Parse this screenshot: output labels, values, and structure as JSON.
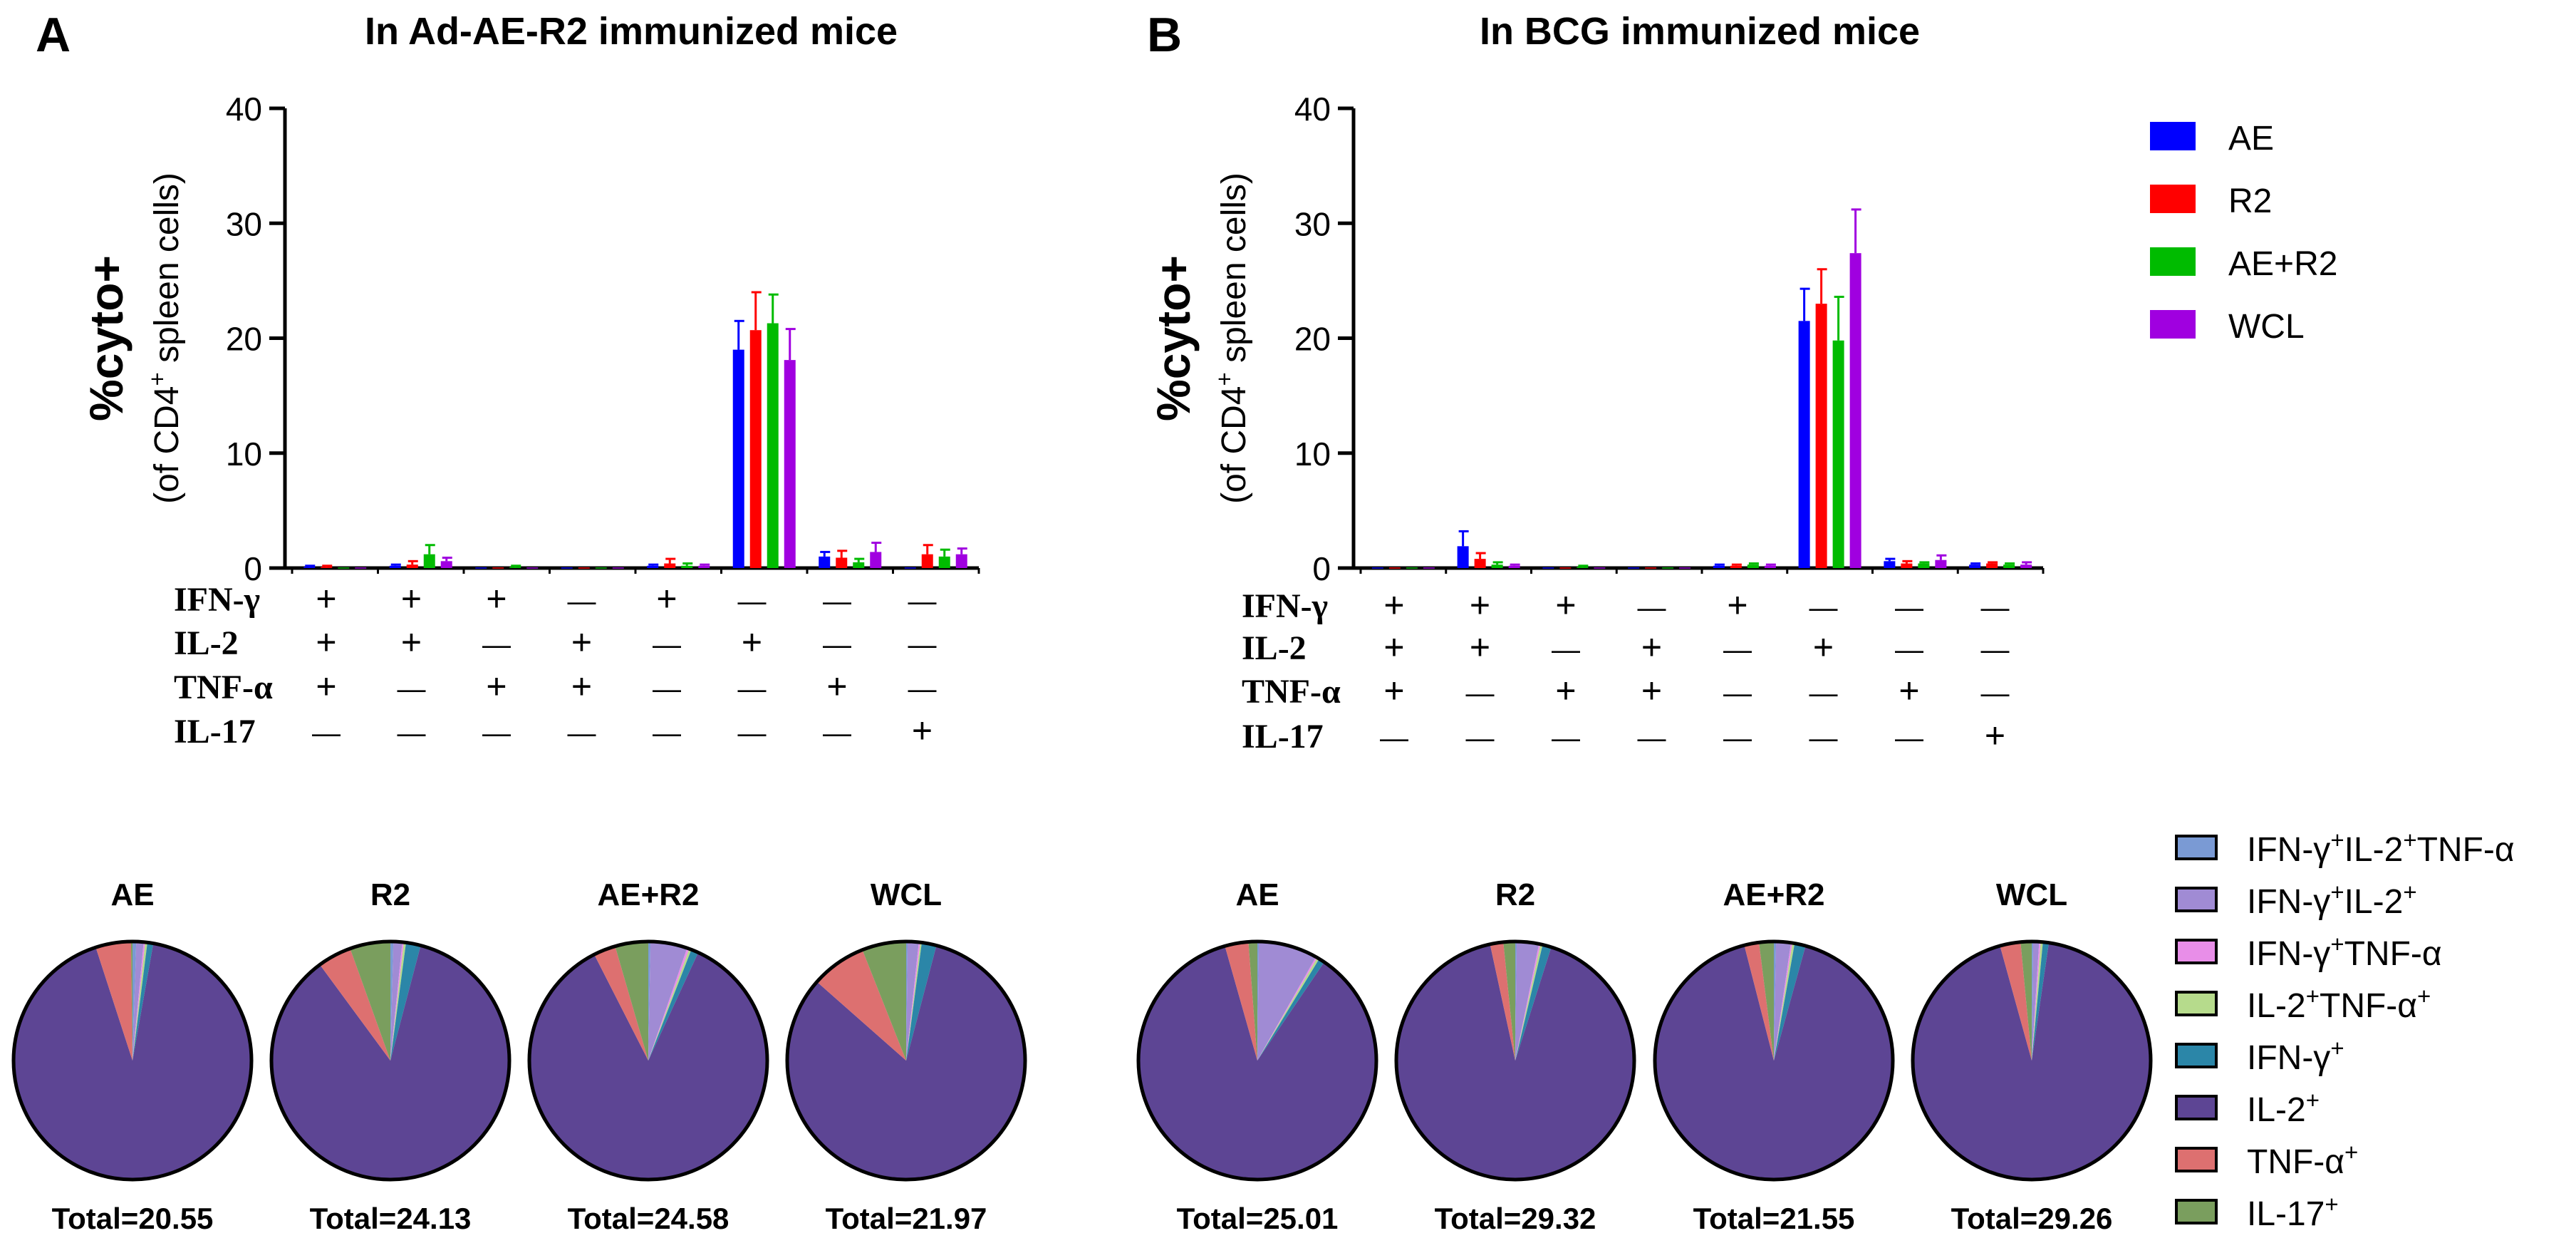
{
  "colors": {
    "AE": "#0000ff",
    "R2": "#ff0000",
    "AE+R2": "#00bb00",
    "WCL": "#a000e0",
    "pie_IFNg_IL2_TNFa": "#7a9ad4",
    "pie_IFNg_IL2": "#a08bd4",
    "pie_IFNg_TNFa": "#e88ee8",
    "pie_IL2_TNFa": "#b6db8c",
    "pie_IFNg": "#2b86a8",
    "pie_IL2": "#5d4594",
    "pie_TNFa": "#dd7070",
    "pie_IL17": "#7a9e5e",
    "axis": "#000000"
  },
  "legend_bars": [
    {
      "label": "AE",
      "color_key": "AE"
    },
    {
      "label": "R2",
      "color_key": "R2"
    },
    {
      "label": "AE+R2",
      "color_key": "AE+R2"
    },
    {
      "label": "WCL",
      "color_key": "WCL"
    }
  ],
  "legend_pies": [
    {
      "base": "IFN-γ",
      "sup": "+",
      "base2": "IL-2",
      "sup2": "+",
      "base3": "TNF-α",
      "color_key": "pie_IFNg_IL2_TNFa"
    },
    {
      "base": "IFN-γ",
      "sup": "+",
      "base2": "IL-2",
      "sup2": "+",
      "base3": "",
      "color_key": "pie_IFNg_IL2"
    },
    {
      "base": "IFN-γ",
      "sup": "+",
      "base2": "TNF-α",
      "sup2": "",
      "base3": "",
      "color_key": "pie_IFNg_TNFa"
    },
    {
      "base": "IL-2",
      "sup": "+",
      "base2": "TNF-α",
      "sup2": "+",
      "base3": "",
      "color_key": "pie_IL2_TNFa"
    },
    {
      "base": "IFN-γ",
      "sup": "+",
      "base2": "",
      "sup2": "",
      "base3": "",
      "color_key": "pie_IFNg"
    },
    {
      "base": "IL-2",
      "sup": "+",
      "base2": "",
      "sup2": "",
      "base3": "",
      "color_key": "pie_IL2"
    },
    {
      "base": "TNF-α",
      "sup": "+",
      "base2": "",
      "sup2": "",
      "base3": "",
      "color_key": "pie_TNFa"
    },
    {
      "base": "IL-17",
      "sup": "+",
      "base2": "",
      "sup2": "",
      "base3": "",
      "color_key": "pie_IL17"
    }
  ],
  "chart_data": [
    {
      "panel": "A",
      "type": "bar",
      "title": "In Ad-AE-R2 immunized mice",
      "ylabel_main": "%cyto+",
      "ylabel_sub_pre": "(of CD4",
      "ylabel_sub_sup": "+",
      "ylabel_sub_post": " spleen cells)",
      "ylim": [
        0,
        40
      ],
      "yticks": [
        "0",
        "10",
        "20",
        "30",
        "40"
      ],
      "row_labels": [
        "IFN-γ",
        "IL-2",
        "TNF-α",
        "IL-17"
      ],
      "signs": [
        [
          "+",
          "+",
          "+",
          "—",
          "+",
          "—",
          "—",
          "—"
        ],
        [
          "+",
          "+",
          "—",
          "+",
          "—",
          "+",
          "—",
          "—"
        ],
        [
          "+",
          "—",
          "+",
          "+",
          "—",
          "—",
          "+",
          "—"
        ],
        [
          "—",
          "—",
          "—",
          "—",
          "—",
          "—",
          "—",
          "+"
        ]
      ],
      "series": [
        {
          "name": "AE",
          "values": [
            0.1,
            0.2,
            0.05,
            0.05,
            0.2,
            19.0,
            1.0,
            0.05
          ],
          "errors": [
            0.1,
            0.1,
            0.05,
            0.05,
            0.1,
            2.5,
            0.4,
            0.05
          ]
        },
        {
          "name": "R2",
          "values": [
            0.1,
            0.3,
            0.05,
            0.05,
            0.4,
            20.7,
            0.9,
            1.2
          ],
          "errors": [
            0.1,
            0.3,
            0.05,
            0.05,
            0.4,
            3.3,
            0.6,
            0.8
          ]
        },
        {
          "name": "AE+R2",
          "values": [
            0.05,
            1.2,
            0.1,
            0.05,
            0.2,
            21.3,
            0.5,
            1.0
          ],
          "errors": [
            0.05,
            0.8,
            0.1,
            0.05,
            0.2,
            2.5,
            0.3,
            0.6
          ]
        },
        {
          "name": "WCL",
          "values": [
            0.05,
            0.6,
            0.05,
            0.05,
            0.2,
            18.1,
            1.4,
            1.2
          ],
          "errors": [
            0.05,
            0.3,
            0.05,
            0.05,
            0.1,
            2.7,
            0.8,
            0.5
          ]
        }
      ]
    },
    {
      "panel": "B",
      "type": "bar",
      "title": "In BCG immunized mice",
      "ylabel_main": "%cyto+",
      "ylabel_sub_pre": "(of CD4",
      "ylabel_sub_sup": "+",
      "ylabel_sub_post": " spleen cells)",
      "ylim": [
        0,
        40
      ],
      "yticks": [
        "0",
        "10",
        "20",
        "30",
        "40"
      ],
      "row_labels": [
        "IFN-γ",
        "IL-2",
        "TNF-α",
        "IL-17"
      ],
      "signs": [
        [
          "+",
          "+",
          "+",
          "—",
          "+",
          "—",
          "—",
          "—"
        ],
        [
          "+",
          "+",
          "—",
          "+",
          "—",
          "+",
          "—",
          "—"
        ],
        [
          "+",
          "—",
          "+",
          "+",
          "—",
          "—",
          "+",
          "—"
        ],
        [
          "—",
          "—",
          "—",
          "—",
          "—",
          "—",
          "—",
          "+"
        ]
      ],
      "series": [
        {
          "name": "AE",
          "values": [
            0.05,
            1.9,
            0.05,
            0.05,
            0.2,
            21.5,
            0.6,
            0.3
          ],
          "errors": [
            0.05,
            1.3,
            0.05,
            0.05,
            0.1,
            2.8,
            0.2,
            0.1
          ]
        },
        {
          "name": "R2",
          "values": [
            0.05,
            0.8,
            0.05,
            0.05,
            0.2,
            23.0,
            0.4,
            0.4
          ],
          "errors": [
            0.05,
            0.5,
            0.05,
            0.05,
            0.1,
            3.0,
            0.2,
            0.1
          ]
        },
        {
          "name": "AE+R2",
          "values": [
            0.05,
            0.3,
            0.1,
            0.05,
            0.3,
            19.8,
            0.4,
            0.3
          ],
          "errors": [
            0.05,
            0.2,
            0.1,
            0.05,
            0.1,
            3.8,
            0.1,
            0.1
          ]
        },
        {
          "name": "WCL",
          "values": [
            0.05,
            0.2,
            0.05,
            0.05,
            0.2,
            27.4,
            0.7,
            0.3
          ],
          "errors": [
            0.05,
            0.1,
            0.05,
            0.05,
            0.1,
            3.8,
            0.4,
            0.2
          ]
        }
      ]
    },
    {
      "panel": "A",
      "type": "pie",
      "group_label": "AE",
      "total_label": "Total=20.55",
      "categories": [
        "IFN-γ+IL-2+TNF-α",
        "IFN-γ+IL-2+",
        "IFN-γ+TNF-α",
        "IL-2+TNF-α+",
        "IFN-γ+",
        "IL-2+",
        "TNF-α+",
        "IL-17+"
      ],
      "values": [
        0.5,
        1.0,
        0.2,
        0.3,
        0.8,
        92.2,
        4.8,
        0.2
      ]
    },
    {
      "panel": "A",
      "type": "pie",
      "group_label": "R2",
      "total_label": "Total=24.13",
      "categories": [
        "IFN-γ+IL-2+TNF-α",
        "IFN-γ+IL-2+",
        "IFN-γ+TNF-α",
        "IL-2+TNF-α+",
        "IFN-γ+",
        "IL-2+",
        "TNF-α+",
        "IL-17+"
      ],
      "values": [
        0.4,
        1.2,
        0.2,
        0.3,
        2.0,
        85.8,
        4.6,
        5.5
      ]
    },
    {
      "panel": "A",
      "type": "pie",
      "group_label": "AE+R2",
      "total_label": "Total=24.58",
      "categories": [
        "IFN-γ+IL-2+TNF-α",
        "IFN-γ+IL-2+",
        "IFN-γ+TNF-α",
        "IL-2+TNF-α+",
        "IFN-γ+",
        "IL-2+",
        "TNF-α+",
        "IL-17+"
      ],
      "values": [
        0.3,
        5.0,
        0.3,
        0.3,
        1.0,
        85.6,
        3.0,
        4.5
      ]
    },
    {
      "panel": "A",
      "type": "pie",
      "group_label": "WCL",
      "total_label": "Total=21.97",
      "categories": [
        "IFN-γ+IL-2+TNF-α",
        "IFN-γ+IL-2+",
        "IFN-γ+TNF-α",
        "IL-2+TNF-α+",
        "IFN-γ+",
        "IL-2+",
        "TNF-α+",
        "IL-17+"
      ],
      "values": [
        0.2,
        1.5,
        0.2,
        0.2,
        2.0,
        82.4,
        7.5,
        6.0
      ]
    },
    {
      "panel": "B",
      "type": "pie",
      "group_label": "AE",
      "total_label": "Total=25.01",
      "categories": [
        "IFN-γ+IL-2+TNF-α",
        "IFN-γ+IL-2+",
        "IFN-γ+TNF-α",
        "IL-2+TNF-α+",
        "IFN-γ+",
        "IL-2+",
        "TNF-α+",
        "IL-17+"
      ],
      "values": [
        0.2,
        8.0,
        0.2,
        0.3,
        0.8,
        86.1,
        3.2,
        1.2
      ]
    },
    {
      "panel": "B",
      "type": "pie",
      "group_label": "R2",
      "total_label": "Total=29.32",
      "categories": [
        "IFN-γ+IL-2+TNF-α",
        "IFN-γ+IL-2+",
        "IFN-γ+TNF-α",
        "IL-2+TNF-α+",
        "IFN-γ+",
        "IL-2+",
        "TNF-α+",
        "IL-17+"
      ],
      "values": [
        0.2,
        3.0,
        0.2,
        0.3,
        1.2,
        91.7,
        1.8,
        1.6
      ]
    },
    {
      "panel": "B",
      "type": "pie",
      "group_label": "AE+R2",
      "total_label": "Total=21.55",
      "categories": [
        "IFN-γ+IL-2+TNF-α",
        "IFN-γ+IL-2+",
        "IFN-γ+TNF-α",
        "IL-2+TNF-α+",
        "IFN-γ+",
        "IL-2+",
        "TNF-α+",
        "IL-17+"
      ],
      "values": [
        0.3,
        2.0,
        0.2,
        0.3,
        1.5,
        91.7,
        2.0,
        2.0
      ]
    },
    {
      "panel": "B",
      "type": "pie",
      "group_label": "WCL",
      "total_label": "Total=29.26",
      "categories": [
        "IFN-γ+IL-2+TNF-α",
        "IFN-γ+IL-2+",
        "IFN-γ+TNF-α",
        "IL-2+TNF-α+",
        "IFN-γ+",
        "IL-2+",
        "TNF-α+",
        "IL-17+"
      ],
      "values": [
        0.2,
        0.8,
        0.2,
        0.3,
        0.8,
        93.4,
        2.8,
        1.5
      ]
    }
  ],
  "panel_letters": [
    "A",
    "B"
  ]
}
